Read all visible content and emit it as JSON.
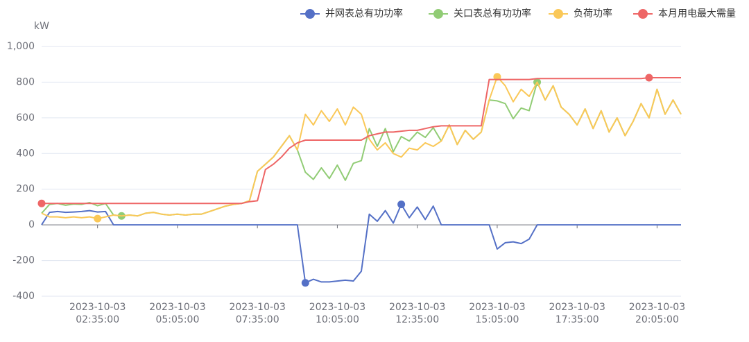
{
  "chart_data": {
    "type": "line",
    "y_axis_label": "kW",
    "categories": [
      null,
      null,
      null,
      null,
      null,
      null,
      null,
      "2023-10-03\n02:35:00",
      null,
      null,
      null,
      null,
      null,
      null,
      null,
      null,
      null,
      "2023-10-03\n05:05:00",
      null,
      null,
      null,
      null,
      null,
      null,
      null,
      null,
      null,
      "2023-10-03\n07:35:00",
      null,
      null,
      null,
      null,
      null,
      null,
      null,
      null,
      null,
      "2023-10-03\n10:05:00",
      null,
      null,
      null,
      null,
      null,
      null,
      null,
      null,
      null,
      "2023-10-03\n12:35:00",
      null,
      null,
      null,
      null,
      null,
      null,
      null,
      null,
      null,
      "2023-10-03\n15:05:00",
      null,
      null,
      null,
      null,
      null,
      null,
      null,
      null,
      null,
      "2023-10-03\n17:35:00",
      null,
      null,
      null,
      null,
      null,
      null,
      null,
      null,
      null,
      "2023-10-03\n20:05:00",
      null,
      null,
      null
    ],
    "series": [
      {
        "name": "并网表总有功功率",
        "color": "#5470c6",
        "values": [
          0,
          70,
          75,
          70,
          72,
          75,
          80,
          72,
          75,
          0,
          0,
          0,
          0,
          0,
          0,
          0,
          0,
          0,
          0,
          0,
          0,
          0,
          0,
          0,
          0,
          0,
          0,
          0,
          0,
          0,
          0,
          0,
          0,
          -325,
          -305,
          -320,
          -320,
          -315,
          -310,
          -315,
          -260,
          60,
          20,
          80,
          10,
          115,
          40,
          100,
          30,
          105,
          0,
          0,
          0,
          0,
          0,
          0,
          0,
          -135,
          -100,
          -95,
          -105,
          -80,
          0,
          0,
          0,
          0,
          0,
          0,
          0,
          0,
          0,
          0,
          0,
          0,
          0,
          0,
          0,
          0,
          0,
          0,
          0
        ]
      },
      {
        "name": "关口表总有功功率",
        "color": "#91cc75",
        "values": [
          65,
          115,
          120,
          110,
          117,
          115,
          125,
          107,
          120,
          55,
          50,
          55,
          50,
          65,
          70,
          60,
          55,
          60,
          55,
          60,
          60,
          75,
          90,
          105,
          115,
          120,
          135,
          300,
          340,
          380,
          440,
          500,
          420,
          295,
          255,
          320,
          260,
          335,
          250,
          345,
          360,
          540,
          440,
          540,
          410,
          495,
          470,
          520,
          490,
          545,
          470,
          560,
          450,
          530,
          480,
          520,
          700,
          695,
          680,
          595,
          655,
          640,
          800,
          700,
          780,
          660,
          620,
          560,
          650,
          540,
          640,
          520,
          600,
          500,
          580,
          680,
          600,
          760,
          620,
          700,
          620
        ]
      },
      {
        "name": "负荷功率",
        "color": "#fac858",
        "values": [
          65,
          45,
          45,
          40,
          45,
          40,
          45,
          35,
          45,
          55,
          50,
          55,
          50,
          65,
          70,
          60,
          55,
          60,
          55,
          60,
          60,
          75,
          90,
          105,
          115,
          120,
          135,
          300,
          340,
          380,
          440,
          500,
          420,
          620,
          560,
          640,
          580,
          650,
          560,
          660,
          620,
          480,
          420,
          460,
          400,
          380,
          430,
          420,
          460,
          440,
          470,
          560,
          450,
          530,
          480,
          520,
          700,
          830,
          780,
          690,
          760,
          720,
          800,
          700,
          780,
          660,
          620,
          560,
          650,
          540,
          640,
          520,
          600,
          500,
          580,
          680,
          600,
          760,
          620,
          700,
          620
        ]
      },
      {
        "name": "本月用电最大需量",
        "color": "#ee6666",
        "values": [
          120,
          120,
          120,
          120,
          120,
          120,
          120,
          120,
          120,
          120,
          120,
          120,
          120,
          120,
          120,
          120,
          120,
          120,
          120,
          120,
          120,
          120,
          120,
          120,
          120,
          120,
          130,
          135,
          310,
          340,
          380,
          430,
          460,
          475,
          475,
          475,
          475,
          475,
          475,
          475,
          475,
          500,
          510,
          520,
          520,
          525,
          530,
          530,
          540,
          550,
          555,
          555,
          555,
          555,
          555,
          555,
          815,
          815,
          815,
          815,
          815,
          815,
          820,
          820,
          820,
          820,
          820,
          820,
          820,
          820,
          820,
          820,
          820,
          820,
          820,
          820,
          825,
          825,
          825,
          825,
          825
        ]
      }
    ],
    "ylim": [
      -400,
      1000
    ],
    "yticks": [
      -400,
      -200,
      0,
      200,
      400,
      600,
      800,
      {
        "value": 1000,
        "label": "1,000"
      }
    ],
    "grid": true
  }
}
